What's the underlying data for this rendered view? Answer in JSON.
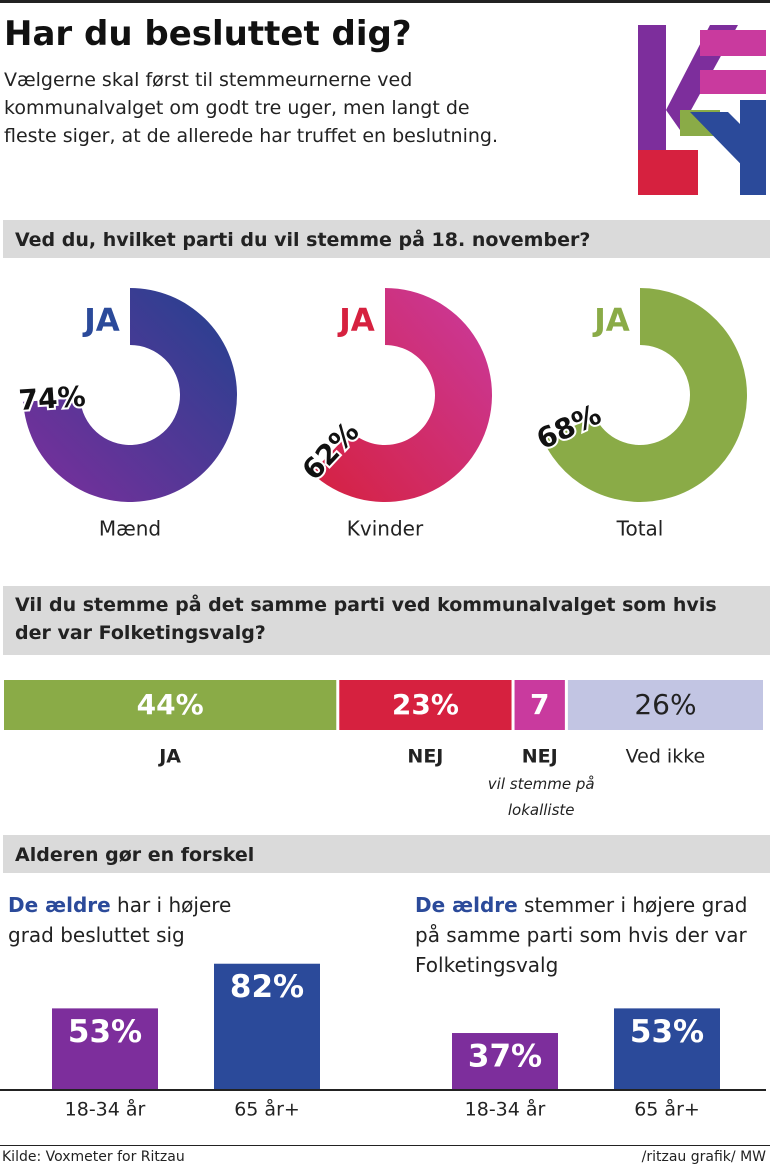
{
  "title": "Har du besluttet dig?",
  "intro": "Vælgerne skal først til stemmeurnerne ved kommunalvalget om godt tre uger, men langt de fleste siger, at de allerede har truffet en beslutning.",
  "section_title": "Alderen gør en forskel",
  "source": "Kilde: Voxmeter for Ritzau",
  "credit": "/ritzau grafik/ MW",
  "chart_data": [
    {
      "type": "donut",
      "title": "Ved du, hvilket parti du vil stemme på 18. november?",
      "categories": [
        "Mænd",
        "Kvinder",
        "Total"
      ],
      "values": [
        74,
        62,
        68
      ],
      "value_labels": [
        "74%",
        "62%",
        "68%"
      ],
      "center_labels": [
        "JA",
        "JA",
        "JA"
      ],
      "label_colors": [
        "#2b4a9a",
        "#d6213f",
        "#8aab47"
      ],
      "colors": [
        [
          "#7d2e9c",
          "#22428f"
        ],
        [
          "#d6213f",
          "#c93a9e"
        ],
        [
          "#8aab47",
          "#8aab47"
        ]
      ]
    },
    {
      "type": "stacked-bar",
      "title": "Vil du stemme på det samme parti ved kommunalvalget som hvis der var Folketingsvalg?",
      "series": [
        {
          "name": "JA",
          "values": [
            44
          ],
          "value_labels": [
            "44%"
          ],
          "color": "#8aab47"
        },
        {
          "name": "NEJ",
          "values": [
            23
          ],
          "value_labels": [
            "23%"
          ],
          "color": "#d6213f"
        },
        {
          "name": "NEJ",
          "note": "vil stemme på lokalliste",
          "values": [
            7
          ],
          "color": "#c93a9e"
        },
        {
          "name": "Ved ikke",
          "values": [
            26
          ],
          "value_labels": [
            "26%"
          ],
          "color": "#c2c5e3"
        }
      ]
    },
    {
      "type": "bar",
      "subtitle_emphasis": "De ældre",
      "subtitle": "har i højere grad besluttet sig",
      "categories": [
        "18-34 år",
        "65 år+"
      ],
      "values": [
        53,
        82
      ],
      "value_labels": [
        "53%",
        "82%"
      ],
      "colors": [
        "#7d2e9c",
        "#2b4a9a"
      ],
      "ylim": [
        0,
        100
      ]
    },
    {
      "type": "bar",
      "subtitle_emphasis": "De ældre",
      "subtitle": "stemmer i højere grad på samme parti som hvis der var Folketingsvalg",
      "categories": [
        "18-34 år",
        "65 år+"
      ],
      "values": [
        37,
        53
      ],
      "value_labels": [
        "37%",
        "53%"
      ],
      "colors": [
        "#7d2e9c",
        "#2b4a9a"
      ],
      "ylim": [
        0,
        100
      ]
    }
  ]
}
